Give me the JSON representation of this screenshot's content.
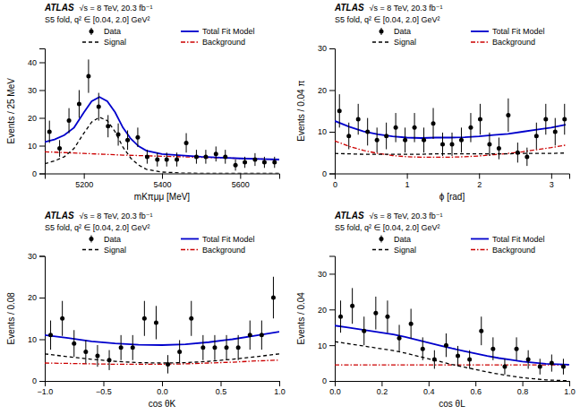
{
  "chart_data": [
    {
      "type": "line",
      "xlabel": "mKπμμ [MeV]",
      "ylabel": "Events / 25 MeV",
      "xlim": [
        5100,
        5700
      ],
      "ylim": [
        0,
        45
      ],
      "xticks": [
        5200,
        5400,
        5600
      ],
      "yticks": [
        0,
        10,
        20,
        30,
        40
      ],
      "grid": false,
      "legend": "upper right",
      "annotations": [
        "ATLAS",
        "√s = 8 TeV, 20.3 fb⁻¹",
        "S5 fold, q² ∈ [0.04, 2.0] GeV²"
      ],
      "series": [
        {
          "name": "Data",
          "type": "scatter",
          "marker": "circle",
          "color": "#000000",
          "x": [
            5112,
            5138,
            5162,
            5188,
            5212,
            5238,
            5262,
            5288,
            5312,
            5338,
            5362,
            5388,
            5412,
            5438,
            5462,
            5488,
            5512,
            5538,
            5562,
            5588,
            5612,
            5638,
            5662,
            5688
          ],
          "values": [
            15,
            9,
            19,
            25,
            35,
            24,
            17,
            14,
            12,
            13,
            6,
            5,
            5,
            5,
            11,
            6,
            6,
            7,
            6,
            3,
            4,
            5,
            4,
            4
          ],
          "errors": [
            4,
            3,
            4.5,
            5,
            6,
            5,
            4,
            4,
            3.5,
            3.5,
            2.5,
            2.5,
            2.5,
            2.5,
            3.5,
            2.5,
            2.5,
            2.7,
            2.5,
            2,
            2,
            2.3,
            2,
            2
          ]
        },
        {
          "name": "Total Fit Model",
          "type": "line",
          "line_style": "solid",
          "color": "#0000cc",
          "x": [
            5100,
            5125,
            5150,
            5175,
            5200,
            5220,
            5240,
            5260,
            5280,
            5300,
            5320,
            5340,
            5360,
            5400,
            5450,
            5500,
            5550,
            5600,
            5650,
            5700
          ],
          "values": [
            11.3,
            12.2,
            13.8,
            16.5,
            21.9,
            26.0,
            27.5,
            26.0,
            22.0,
            16.5,
            12.5,
            9.8,
            8.2,
            7.0,
            6.5,
            6.0,
            5.7,
            5.4,
            5.2,
            5.0
          ]
        },
        {
          "name": "Signal",
          "type": "line",
          "line_style": "dashed",
          "color": "#000000",
          "x": [
            5100,
            5125,
            5150,
            5175,
            5200,
            5220,
            5240,
            5260,
            5280,
            5300,
            5320,
            5340,
            5360,
            5400,
            5450,
            5500,
            5550,
            5600,
            5650,
            5700
          ],
          "values": [
            3.5,
            4.5,
            6.0,
            9.0,
            14.5,
            18.5,
            20.2,
            19.0,
            15.0,
            9.5,
            5.5,
            3.0,
            1.5,
            0.5,
            0.15,
            0.05,
            0.02,
            0.01,
            0.005,
            0.002
          ]
        },
        {
          "name": "Background",
          "type": "line",
          "line_style": "dashdot",
          "color": "#cc0000",
          "x": [
            5100,
            5150,
            5200,
            5250,
            5300,
            5350,
            5400,
            5450,
            5500,
            5550,
            5600,
            5650,
            5700
          ],
          "values": [
            7.8,
            7.5,
            7.2,
            6.9,
            6.6,
            6.4,
            6.2,
            6.0,
            5.8,
            5.6,
            5.4,
            5.2,
            5.0
          ]
        }
      ]
    },
    {
      "type": "line",
      "xlabel": "ϕ [rad]",
      "ylabel": "Events / 0.04 π",
      "xlim": [
        0,
        3.25
      ],
      "ylim": [
        0,
        30
      ],
      "xticks": [
        0,
        1,
        2,
        3
      ],
      "yticks": [
        0,
        10,
        20,
        30
      ],
      "grid": false,
      "legend": "upper right",
      "annotations": [
        "ATLAS",
        "√s = 8 TeV, 20.3 fb⁻¹",
        "S5 fold, q² ∈ [0.04, 2.0] GeV²"
      ],
      "series": [
        {
          "name": "Data",
          "type": "scatter",
          "marker": "circle",
          "color": "#000000",
          "x": [
            0.065,
            0.195,
            0.325,
            0.455,
            0.585,
            0.715,
            0.845,
            0.975,
            1.105,
            1.235,
            1.365,
            1.495,
            1.625,
            1.755,
            1.885,
            2.015,
            2.145,
            2.275,
            2.405,
            2.535,
            2.665,
            2.795,
            2.925,
            3.055,
            3.185
          ],
          "values": [
            15,
            9,
            13,
            10,
            8,
            9,
            11,
            8,
            11,
            8,
            12,
            7,
            7,
            8,
            11,
            13,
            7,
            6,
            14,
            5,
            4,
            9,
            13,
            10,
            13
          ],
          "errors": [
            4,
            3.2,
            3.7,
            3.3,
            3,
            3.2,
            3.5,
            3,
            3.5,
            3,
            3.7,
            2.8,
            2.8,
            3,
            3.5,
            3.7,
            2.8,
            2.6,
            4,
            2.4,
            2.2,
            3.2,
            3.7,
            3.3,
            3.7
          ]
        },
        {
          "name": "Total Fit Model",
          "type": "line",
          "line_style": "solid",
          "color": "#0000cc",
          "x": [
            0,
            0.2,
            0.4,
            0.6,
            0.8,
            1.0,
            1.2,
            1.4,
            1.6,
            1.8,
            2.0,
            2.2,
            2.4,
            2.6,
            2.8,
            3.0,
            3.2
          ],
          "values": [
            12.6,
            11.2,
            10.1,
            9.4,
            8.9,
            8.6,
            8.5,
            8.6,
            8.6,
            8.7,
            8.9,
            9.2,
            9.5,
            10.0,
            10.5,
            11.0,
            11.7
          ]
        },
        {
          "name": "Signal",
          "type": "line",
          "line_style": "dashed",
          "color": "#000000",
          "x": [
            0,
            0.2,
            0.4,
            0.6,
            0.8,
            1.0,
            1.2,
            1.4,
            1.6,
            1.8,
            2.0,
            2.2,
            2.4,
            2.6,
            2.8,
            3.0,
            3.2
          ],
          "values": [
            4.8,
            4.7,
            4.6,
            4.6,
            4.6,
            4.6,
            4.6,
            4.7,
            4.7,
            4.7,
            4.7,
            4.7,
            4.7,
            4.8,
            4.8,
            4.8,
            4.9
          ]
        },
        {
          "name": "Background",
          "type": "line",
          "line_style": "dashdot",
          "color": "#cc0000",
          "x": [
            0,
            0.2,
            0.4,
            0.6,
            0.8,
            1.0,
            1.2,
            1.4,
            1.6,
            1.8,
            2.0,
            2.2,
            2.4,
            2.6,
            2.8,
            3.0,
            3.2
          ],
          "values": [
            7.8,
            6.5,
            5.5,
            4.8,
            4.3,
            4.0,
            3.9,
            3.9,
            3.9,
            4.0,
            4.2,
            4.5,
            4.8,
            5.2,
            5.7,
            6.2,
            6.8
          ]
        }
      ]
    },
    {
      "type": "line",
      "xlabel": "cos θK",
      "ylabel": "Events / 0.08",
      "xlim": [
        -1,
        1
      ],
      "ylim": [
        0,
        30
      ],
      "xticks": [
        {
          "value": -1,
          "label": "−1.0"
        },
        {
          "value": -0.5,
          "label": "−0.5"
        },
        {
          "value": 0,
          "label": "0.0"
        },
        0.5,
        {
          "value": 1,
          "label": "1.0"
        }
      ],
      "yticks": [
        0,
        10,
        20,
        30
      ],
      "grid": false,
      "legend": "upper right",
      "annotations": [
        "ATLAS",
        "√s = 8 TeV, 20.3 fb⁻¹",
        "S5 fold, q² ∈ [0.04, 2.0] GeV²"
      ],
      "series": [
        {
          "name": "Data",
          "type": "scatter",
          "marker": "circle",
          "color": "#000000",
          "x": [
            -0.95,
            -0.85,
            -0.75,
            -0.65,
            -0.55,
            -0.45,
            -0.35,
            -0.25,
            -0.15,
            -0.05,
            0.05,
            0.15,
            0.25,
            0.35,
            0.45,
            0.55,
            0.65,
            0.75,
            0.85,
            0.95
          ],
          "values": [
            11,
            15,
            9,
            7,
            6,
            5,
            8,
            8,
            15,
            14,
            4,
            7,
            15,
            8,
            8,
            8,
            8,
            11,
            11,
            20
          ],
          "errors": [
            3.5,
            4.2,
            3.2,
            2.8,
            2.6,
            2.4,
            3,
            3,
            4.2,
            4,
            2.2,
            2.8,
            4.2,
            3,
            3,
            3,
            3,
            3.5,
            3.5,
            5
          ]
        },
        {
          "name": "Total Fit Model",
          "type": "line",
          "line_style": "solid",
          "color": "#0000cc",
          "x": [
            -1,
            -0.8,
            -0.6,
            -0.4,
            -0.2,
            0,
            0.2,
            0.4,
            0.6,
            0.8,
            1.0
          ],
          "values": [
            11.0,
            10.3,
            9.5,
            9.0,
            8.7,
            8.6,
            8.8,
            9.3,
            10.0,
            10.9,
            11.8
          ]
        },
        {
          "name": "Signal",
          "type": "line",
          "line_style": "dashed",
          "color": "#000000",
          "x": [
            -1,
            -0.8,
            -0.6,
            -0.4,
            -0.2,
            0,
            0.2,
            0.4,
            0.6,
            0.8,
            1.0
          ],
          "values": [
            6.5,
            5.8,
            5.2,
            4.7,
            4.4,
            4.3,
            4.4,
            4.7,
            5.2,
            5.8,
            6.5
          ]
        },
        {
          "name": "Background",
          "type": "line",
          "line_style": "dashdot",
          "color": "#cc0000",
          "x": [
            -1,
            -0.8,
            -0.6,
            -0.4,
            -0.2,
            0,
            0.2,
            0.4,
            0.6,
            0.8,
            1.0
          ],
          "values": [
            4.3,
            4.2,
            4.1,
            4.0,
            4.0,
            4.0,
            4.1,
            4.3,
            4.5,
            4.8,
            5.0
          ]
        }
      ]
    },
    {
      "type": "line",
      "xlabel": "cos θL",
      "ylabel": "Events / 0.04",
      "xlim": [
        0,
        1
      ],
      "ylim": [
        0,
        35
      ],
      "xticks": [
        {
          "value": 0,
          "label": "0.0"
        },
        0.2,
        0.4,
        0.6,
        0.8,
        {
          "value": 1.0,
          "label": "1.0"
        }
      ],
      "yticks": [
        0,
        10,
        20,
        30
      ],
      "grid": false,
      "legend": "upper right",
      "annotations": [
        "ATLAS",
        "√s = 8 TeV, 20.3 fb⁻¹",
        "S5 fold, q² ∈ [0.04, 2.0] GeV²"
      ],
      "series": [
        {
          "name": "Data",
          "type": "scatter",
          "marker": "circle",
          "color": "#000000",
          "x": [
            0.025,
            0.075,
            0.125,
            0.175,
            0.225,
            0.275,
            0.325,
            0.375,
            0.425,
            0.475,
            0.525,
            0.575,
            0.625,
            0.675,
            0.725,
            0.775,
            0.825,
            0.875,
            0.925,
            0.975
          ],
          "values": [
            18,
            21,
            14,
            19,
            18,
            12,
            16,
            9,
            6,
            10,
            7,
            6,
            14,
            9,
            4,
            9,
            6,
            4,
            5,
            4
          ],
          "errors": [
            4.5,
            5,
            4,
            4.6,
            4.5,
            3.7,
            4.2,
            3.2,
            2.6,
            3.3,
            2.8,
            2.6,
            4,
            3.2,
            2.2,
            3.2,
            2.6,
            2.2,
            2.4,
            2.2
          ]
        },
        {
          "name": "Total Fit Model",
          "type": "line",
          "line_style": "solid",
          "color": "#0000cc",
          "x": [
            0,
            0.05,
            0.1,
            0.15,
            0.2,
            0.25,
            0.3,
            0.35,
            0.4,
            0.45,
            0.5,
            0.55,
            0.6,
            0.65,
            0.7,
            0.75,
            0.8,
            0.85,
            0.9,
            0.95,
            1.0
          ],
          "values": [
            15.5,
            15.0,
            14.5,
            14.0,
            13.5,
            13.0,
            12.3,
            11.5,
            10.7,
            9.9,
            9.1,
            8.4,
            7.7,
            7.0,
            6.4,
            5.9,
            5.4,
            5.1,
            4.8,
            4.65,
            4.55
          ]
        },
        {
          "name": "Signal",
          "type": "line",
          "line_style": "dashed",
          "color": "#000000",
          "x": [
            0,
            0.05,
            0.1,
            0.15,
            0.2,
            0.25,
            0.3,
            0.35,
            0.4,
            0.45,
            0.5,
            0.55,
            0.6,
            0.65,
            0.7,
            0.75,
            0.8,
            0.85,
            0.9,
            0.95,
            1.0
          ],
          "values": [
            11.0,
            10.5,
            10.0,
            9.5,
            9.0,
            8.5,
            7.8,
            7.0,
            6.2,
            5.4,
            4.6,
            3.9,
            3.2,
            2.5,
            1.9,
            1.4,
            0.9,
            0.6,
            0.3,
            0.15,
            0.05
          ]
        },
        {
          "name": "Background",
          "type": "line",
          "line_style": "dashdot",
          "color": "#cc0000",
          "x": [
            0,
            0.1,
            0.2,
            0.3,
            0.4,
            0.5,
            0.6,
            0.7,
            0.8,
            0.9,
            1.0
          ],
          "values": [
            4.5,
            4.5,
            4.5,
            4.5,
            4.5,
            4.5,
            4.5,
            4.5,
            4.5,
            4.5,
            4.5
          ]
        }
      ]
    }
  ]
}
